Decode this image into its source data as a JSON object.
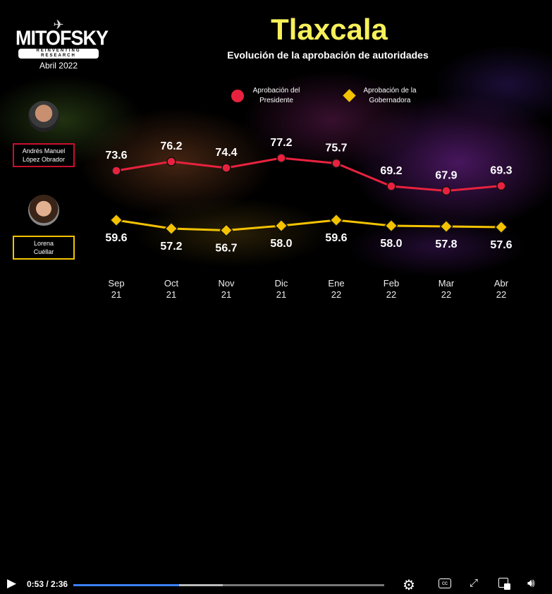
{
  "logo": {
    "brand": "MITOFSKY",
    "tagline": "REINVENTING RESEARCH",
    "date": "Abril 2022"
  },
  "title": "Tlaxcala",
  "subtitle": "Evolución de la aprobación de autoridades",
  "people": [
    {
      "name_line1": "Andrés Manuel",
      "name_line2": "López Obrador",
      "border_color": "#c8102e"
    },
    {
      "name_line1": "Lorena",
      "name_line2": "Cuéllar",
      "border_color": "#f4c300"
    }
  ],
  "chart_data": {
    "type": "line",
    "title": "Evolución de la aprobación de autoridades",
    "categories": [
      [
        "Sep",
        "21"
      ],
      [
        "Oct",
        "21"
      ],
      [
        "Nov",
        "21"
      ],
      [
        "Dic",
        "21"
      ],
      [
        "Ene",
        "22"
      ],
      [
        "Feb",
        "22"
      ],
      [
        "Mar",
        "22"
      ],
      [
        "Abr",
        "22"
      ]
    ],
    "series": [
      {
        "name": "Aprobación del Presidente",
        "name_line1": "Aprobación del",
        "name_line2": "Presidente",
        "color": "#e8223e",
        "marker": "circle",
        "values": [
          73.6,
          76.2,
          74.4,
          77.2,
          75.7,
          69.2,
          67.9,
          69.3
        ]
      },
      {
        "name": "Aprobación de la Gobernadora",
        "name_line1": "Aprobación de la",
        "name_line2": "Gobernadora",
        "color": "#f4c300",
        "marker": "diamond",
        "values": [
          59.6,
          57.2,
          56.7,
          58.0,
          59.6,
          58.0,
          57.8,
          57.6
        ]
      }
    ],
    "grid": false,
    "legend": "top"
  },
  "player": {
    "time_current": "0:53",
    "time_total": "2:36",
    "progress": 0.34,
    "buffered": 0.48,
    "icons": [
      "play-icon",
      "settings-icon",
      "captions-icon",
      "fullscreen-icon",
      "pip-icon",
      "volume-icon"
    ]
  }
}
